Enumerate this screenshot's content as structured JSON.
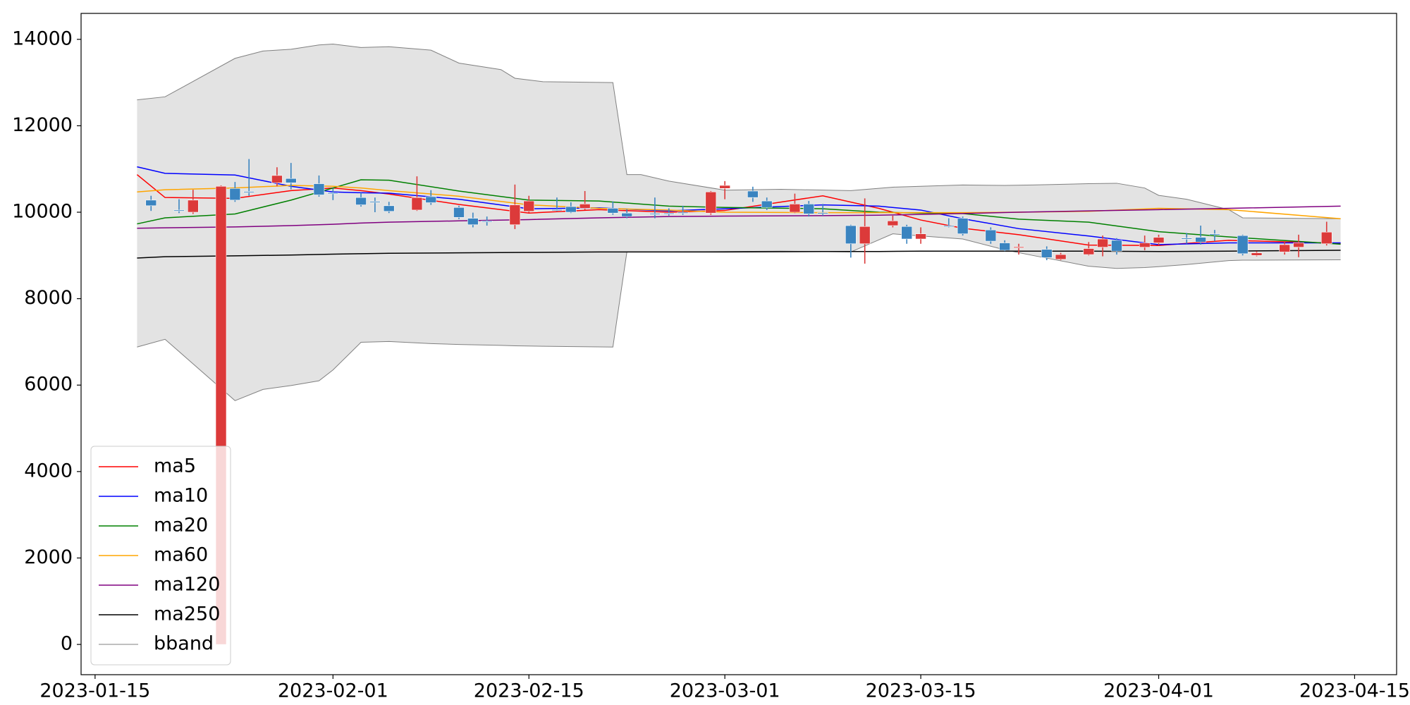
{
  "chart_data": {
    "type": "candlestick",
    "x": [
      "2023-01-19",
      "2023-01-21",
      "2023-01-22",
      "2023-01-24",
      "2023-01-25",
      "2023-01-26",
      "2023-01-28",
      "2023-01-29",
      "2023-01-31",
      "2023-02-01",
      "2023-02-03",
      "2023-02-04",
      "2023-02-05",
      "2023-02-07",
      "2023-02-08",
      "2023-02-10",
      "2023-02-11",
      "2023-02-12",
      "2023-02-14",
      "2023-02-15",
      "2023-02-17",
      "2023-02-18",
      "2023-02-19",
      "2023-02-21",
      "2023-02-22",
      "2023-02-24",
      "2023-02-25",
      "2023-02-26",
      "2023-02-28",
      "2023-03-01",
      "2023-03-03",
      "2023-03-04",
      "2023-03-06",
      "2023-03-07",
      "2023-03-08",
      "2023-03-10",
      "2023-03-11",
      "2023-03-13",
      "2023-03-14",
      "2023-03-15",
      "2023-03-17",
      "2023-03-18",
      "2023-03-20",
      "2023-03-21",
      "2023-03-22",
      "2023-03-24",
      "2023-03-25",
      "2023-03-27",
      "2023-03-28",
      "2023-03-29",
      "2023-03-31",
      "2023-04-01",
      "2023-04-03",
      "2023-04-04",
      "2023-04-05",
      "2023-04-07",
      "2023-04-08",
      "2023-04-10",
      "2023-04-11",
      "2023-04-13"
    ],
    "open": [
      10280,
      10050,
      10000,
      0,
      10550,
      10480,
      10680,
      10780,
      10660,
      10450,
      10340,
      10250,
      10150,
      10050,
      10360,
      10110,
      9860,
      9800,
      9710,
      10020,
      10060,
      10130,
      10090,
      10090,
      9980,
      9970,
      9980,
      10000,
      9980,
      10550,
      10490,
      10260,
      10000,
      10190,
      9990,
      9690,
      9270,
      9690,
      9670,
      9380,
      9690,
      9860,
      9590,
      9290,
      9180,
      9140,
      8910,
      9020,
      9190,
      9350,
      9190,
      9290,
      9400,
      9420,
      9500,
      9460,
      9000,
      9080,
      9190,
      9270
    ],
    "high": [
      10380,
      10300,
      10520,
      10620,
      10700,
      11230,
      11040,
      11140,
      10850,
      10550,
      10450,
      10340,
      10240,
      10830,
      10510,
      10150,
      9990,
      9900,
      10640,
      10380,
      10340,
      10230,
      10490,
      10250,
      10070,
      10340,
      10090,
      10150,
      10490,
      10720,
      10590,
      10340,
      10430,
      10260,
      10190,
      9710,
      10320,
      9920,
      9710,
      9650,
      9860,
      9900,
      9650,
      9350,
      9270,
      9210,
      9060,
      9310,
      9460,
      9400,
      9460,
      9480,
      9520,
      9690,
      9590,
      9480,
      9100,
      9330,
      9480,
      9780
    ],
    "low": [
      10030,
      9980,
      9960,
      0,
      10240,
      10380,
      10600,
      10530,
      10360,
      10280,
      10130,
      10000,
      9980,
      10030,
      10170,
      9840,
      9650,
      9690,
      9610,
      9990,
      10020,
      9980,
      10050,
      9940,
      9860,
      9860,
      9920,
      9940,
      9940,
      10300,
      10240,
      10050,
      9980,
      9900,
      9920,
      8950,
      8810,
      9650,
      9270,
      9270,
      9650,
      9460,
      9270,
      9100,
      9020,
      8890,
      8890,
      9000,
      8980,
      9020,
      9120,
      9230,
      9270,
      9250,
      9330,
      9000,
      8980,
      9020,
      8960,
      9230
    ],
    "close": [
      10150,
      10050,
      10280,
      10600,
      10280,
      10480,
      10850,
      10680,
      10400,
      10450,
      10170,
      10250,
      10020,
      10340,
      10220,
      9880,
      9710,
      9800,
      10170,
      10260,
      10060,
      10000,
      10190,
      9980,
      9900,
      9970,
      9980,
      10000,
      10470,
      10620,
      10340,
      10110,
      10190,
      9960,
      9990,
      9270,
      9670,
      9800,
      9380,
      9500,
      9690,
      9500,
      9330,
      9120,
      9200,
      8950,
      9020,
      9160,
      9380,
      9100,
      9290,
      9420,
      9400,
      9310,
      9500,
      9040,
      9060,
      9250,
      9290,
      9540
    ],
    "up_color": "#dc3a3a",
    "down_color": "#3a84c0",
    "lines": {
      "x": [
        "2023-01-18",
        "2023-01-20",
        "2023-01-25",
        "2023-01-29",
        "2023-02-01",
        "2023-02-03",
        "2023-02-05",
        "2023-02-10",
        "2023-02-15",
        "2023-02-20",
        "2023-02-25",
        "2023-03-01",
        "2023-03-08",
        "2023-03-12",
        "2023-03-15",
        "2023-03-18",
        "2023-03-22",
        "2023-03-27",
        "2023-04-01",
        "2023-04-06",
        "2023-04-14"
      ],
      "series": [
        {
          "name": "ma5",
          "color": "#ff0000",
          "values": [
            10870,
            10340,
            10320,
            10500,
            10560,
            10500,
            10420,
            10180,
            9980,
            10060,
            10000,
            10040,
            10380,
            10090,
            9820,
            9630,
            9480,
            9240,
            9230,
            9350,
            9280
          ]
        },
        {
          "name": "ma10",
          "color": "#0000ff",
          "values": [
            11050,
            10900,
            10860,
            10600,
            10470,
            10450,
            10440,
            10300,
            10080,
            10100,
            10030,
            10080,
            10170,
            10140,
            10050,
            9850,
            9620,
            9450,
            9250,
            9290,
            9290
          ]
        },
        {
          "name": "ma20",
          "color": "#008000",
          "values": [
            9730,
            9870,
            9960,
            10280,
            10560,
            10750,
            10740,
            10490,
            10280,
            10260,
            10140,
            10110,
            10080,
            10000,
            9980,
            9970,
            9840,
            9770,
            9550,
            9430,
            9260
          ]
        },
        {
          "name": "ma60",
          "color": "#ffa500",
          "values": [
            10470,
            10520,
            10560,
            10620,
            10600,
            10560,
            10500,
            10370,
            10170,
            10090,
            10050,
            10000,
            9990,
            9990,
            9990,
            9990,
            10000,
            10020,
            10090,
            10060,
            9850
          ]
        },
        {
          "name": "ma120",
          "color": "#800080",
          "values": [
            9630,
            9640,
            9660,
            9690,
            9720,
            9750,
            9770,
            9800,
            9830,
            9870,
            9900,
            9910,
            9920,
            9930,
            9950,
            9970,
            10000,
            10030,
            10060,
            10090,
            10140
          ]
        },
        {
          "name": "ma250",
          "color": "#000000",
          "values": [
            8940,
            8970,
            8990,
            9010,
            9030,
            9040,
            9050,
            9060,
            9070,
            9080,
            9080,
            9080,
            9090,
            9090,
            9100,
            9100,
            9100,
            9100,
            9090,
            9100,
            9120
          ]
        }
      ]
    },
    "band": {
      "name": "bband",
      "color": "#808080",
      "fill": "#e3e3e3",
      "x": [
        "2023-01-18",
        "2023-01-20",
        "2023-01-25",
        "2023-01-27",
        "2023-01-29",
        "2023-01-31",
        "2023-02-01",
        "2023-02-03",
        "2023-02-05",
        "2023-02-08",
        "2023-02-10",
        "2023-02-13",
        "2023-02-14",
        "2023-02-16",
        "2023-02-21",
        "2023-02-22",
        "2023-02-23",
        "2023-02-25",
        "2023-03-01",
        "2023-03-05",
        "2023-03-10",
        "2023-03-13",
        "2023-03-18",
        "2023-03-21",
        "2023-03-23",
        "2023-03-27",
        "2023-03-29",
        "2023-03-31",
        "2023-04-01",
        "2023-04-03",
        "2023-04-06",
        "2023-04-07",
        "2023-04-14"
      ],
      "upper": [
        12600,
        12670,
        13560,
        13730,
        13770,
        13870,
        13890,
        13810,
        13830,
        13750,
        13450,
        13300,
        13100,
        13020,
        13000,
        10870,
        10870,
        10720,
        10510,
        10530,
        10500,
        10580,
        10630,
        10620,
        10630,
        10660,
        10670,
        10560,
        10390,
        10300,
        10060,
        9870,
        9850
      ],
      "lower": [
        6880,
        7060,
        5640,
        5900,
        5990,
        6100,
        6350,
        6990,
        7010,
        6960,
        6940,
        6920,
        6910,
        6900,
        6880,
        9080,
        9080,
        9080,
        9090,
        9100,
        9080,
        9500,
        9380,
        9130,
        9000,
        8750,
        8700,
        8720,
        8740,
        8790,
        8880,
        8890,
        8900
      ]
    },
    "xlim": [
      "2023-01-14",
      "2023-04-18"
    ],
    "xticks": [
      "2023-01-15",
      "2023-02-01",
      "2023-02-15",
      "2023-03-01",
      "2023-03-15",
      "2023-04-01",
      "2023-04-15"
    ],
    "ylim": [
      -700,
      14600
    ],
    "yticks": [
      0,
      2000,
      4000,
      6000,
      8000,
      10000,
      12000,
      14000
    ],
    "grid": false,
    "legend": "lower left"
  }
}
